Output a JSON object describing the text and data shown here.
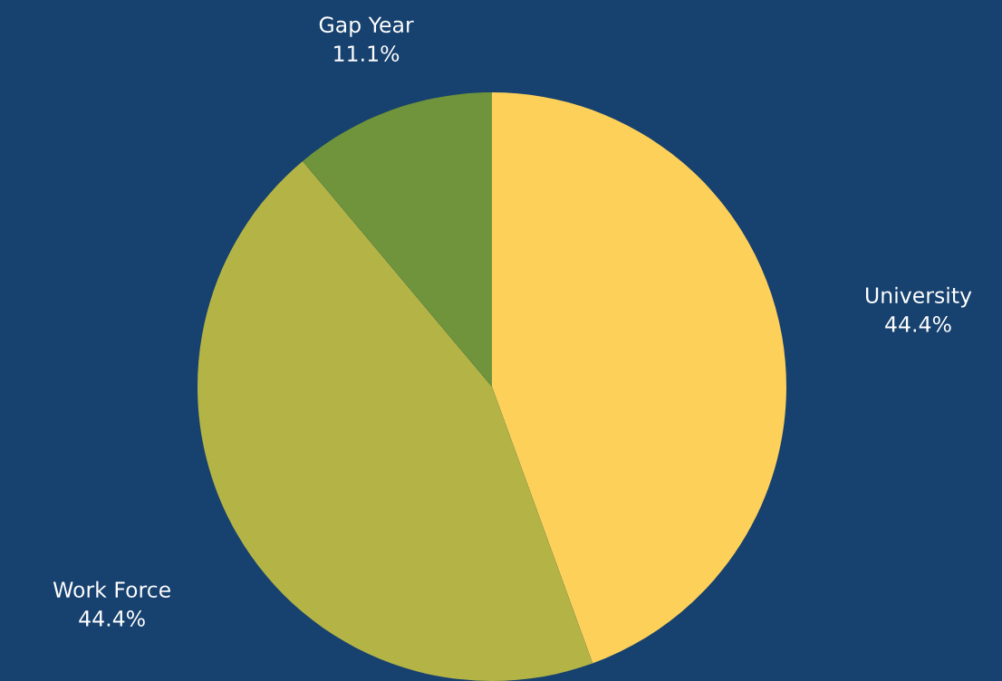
{
  "chart_data": {
    "type": "pie",
    "categories": [
      "University",
      "Work Force",
      "Gap Year"
    ],
    "values": [
      44.4,
      44.4,
      11.1
    ],
    "value_labels": [
      "44.4%",
      "44.4%",
      "11.1%"
    ],
    "colors": [
      "#fdd05a",
      "#b4b446",
      "#6f943b"
    ]
  }
}
